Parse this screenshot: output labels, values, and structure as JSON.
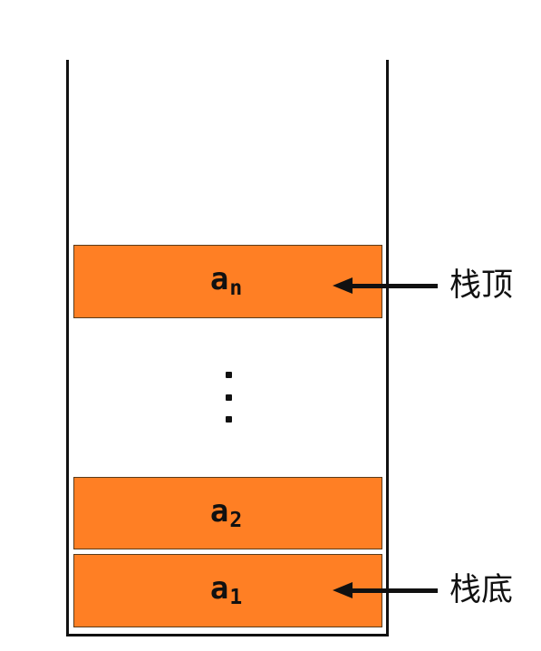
{
  "stack": {
    "elements": [
      {
        "base": "a",
        "sub": "n"
      },
      {
        "base": "a",
        "sub": "2"
      },
      {
        "base": "a",
        "sub": "1"
      }
    ],
    "ellipsis_dots": 3
  },
  "labels": {
    "top": "栈顶",
    "bottom": "栈底"
  },
  "colors": {
    "element_fill": "#ff7f24",
    "line": "#111111",
    "background": "#ffffff"
  }
}
